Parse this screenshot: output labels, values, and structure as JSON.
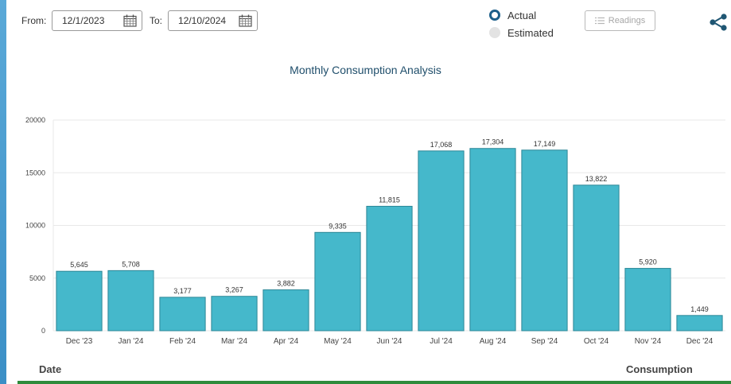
{
  "filters": {
    "from_label": "From:",
    "from_value": "12/1/2023",
    "to_label": "To:",
    "to_value": "12/10/2024"
  },
  "mode": {
    "actual_label": "Actual",
    "estimated_label": "Estimated",
    "selected": "Actual"
  },
  "readings_label": "Readings",
  "icons": {
    "calendar": "calendar-icon",
    "share": "share-icon",
    "list": "list-icon"
  },
  "colors": {
    "bar": "#45b8cb",
    "bar_stroke": "#2c8797",
    "title": "#1f4e6b",
    "radio": "#1d5f8a",
    "footer_line": "#2e8b3b"
  },
  "chart_data": {
    "type": "bar",
    "title": "Monthly Consumption Analysis",
    "categories": [
      "Dec '23",
      "Jan '24",
      "Feb '24",
      "Mar '24",
      "Apr '24",
      "May '24",
      "Jun '24",
      "Jul '24",
      "Aug '24",
      "Sep '24",
      "Oct '24",
      "Nov '24",
      "Dec '24"
    ],
    "values": [
      5645,
      5708,
      3177,
      3267,
      3882,
      9335,
      11815,
      17068,
      17304,
      17149,
      13822,
      5920,
      1449
    ],
    "value_labels": [
      "5,645",
      "5,708",
      "3,177",
      "3,267",
      "3,882",
      "9,335",
      "11,815",
      "17,068",
      "17,304",
      "17,149",
      "13,822",
      "5,920",
      "1,449"
    ],
    "y_ticks": [
      "0",
      "5000",
      "10000",
      "15000",
      "20000"
    ],
    "ylim": [
      0,
      20000
    ],
    "grid": true,
    "legend": "none"
  },
  "table_header": {
    "date": "Date",
    "consumption": "Consumption"
  }
}
